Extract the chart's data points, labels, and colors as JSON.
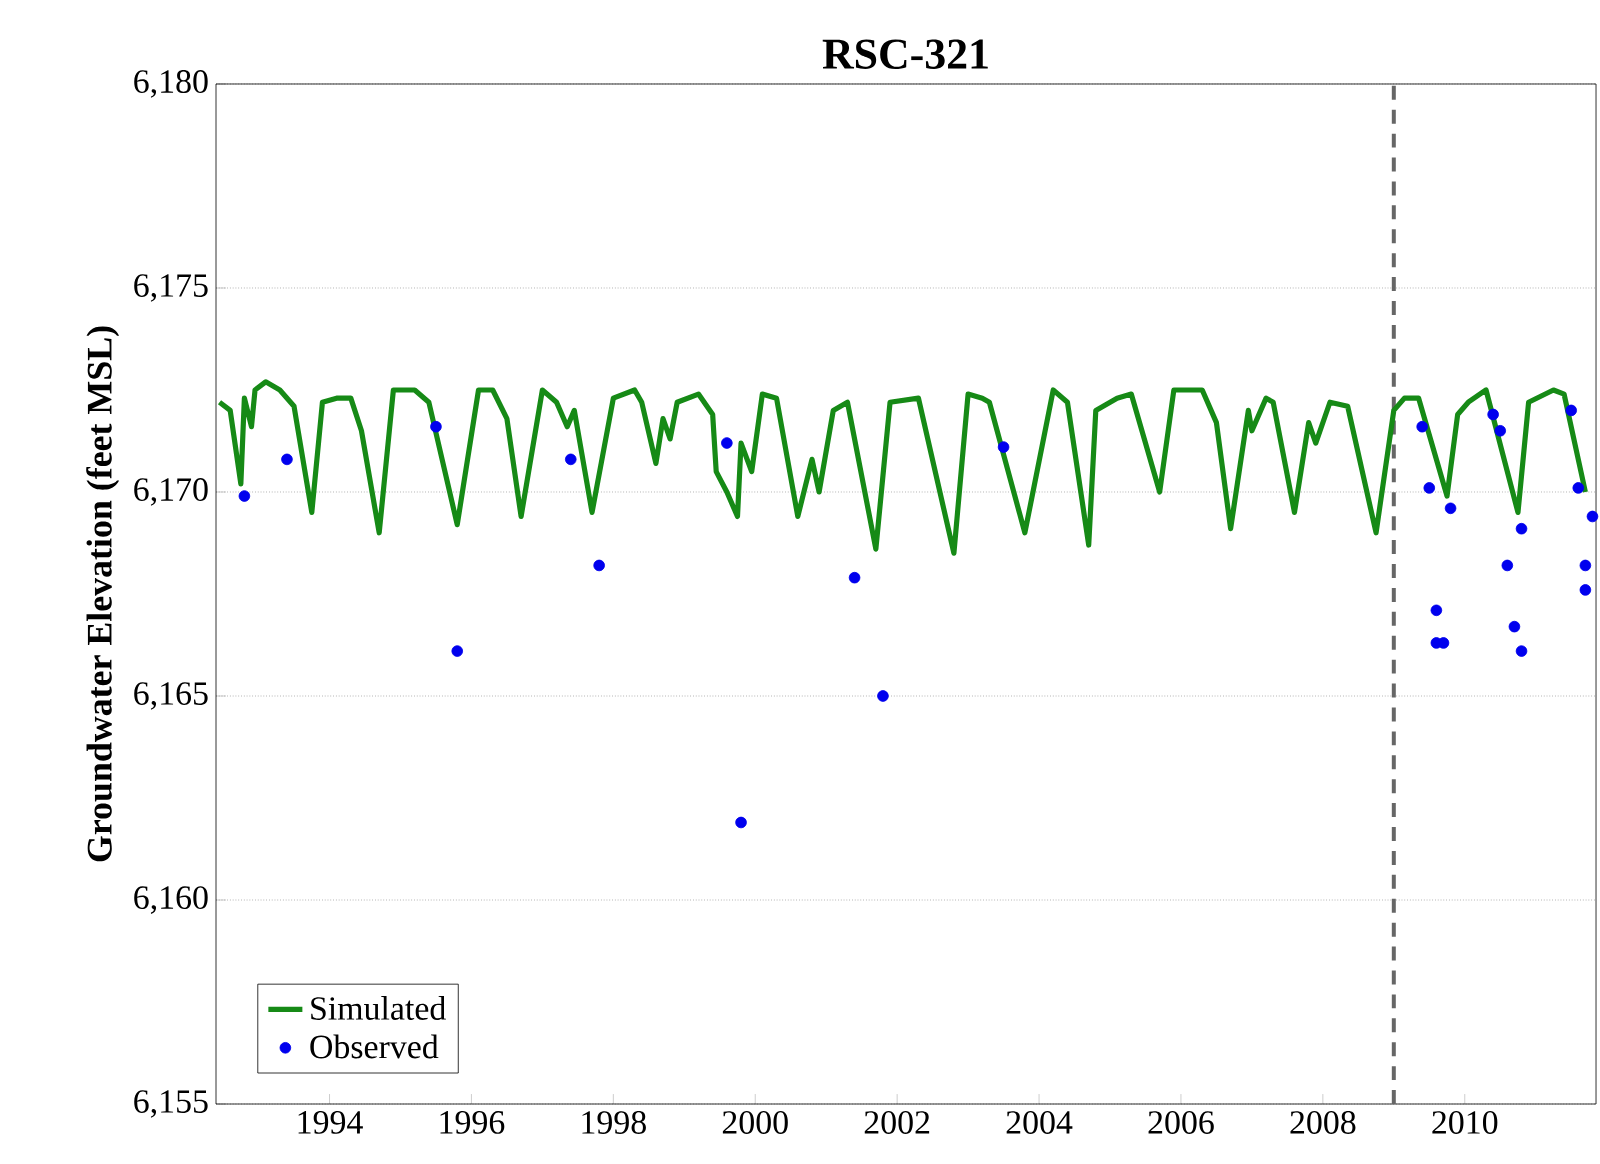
{
  "chart_data": {
    "type": "line",
    "title": "RSC-321",
    "ylabel": "Groundwater Elevation (feet MSL)",
    "xlim": [
      1992.4,
      2011.85
    ],
    "ylim": [
      6155,
      6180
    ],
    "xticks": [
      1994,
      1996,
      1998,
      2000,
      2002,
      2004,
      2006,
      2008,
      2010
    ],
    "yticks": [
      {
        "value": 6155,
        "label": "6,155"
      },
      {
        "value": 6160,
        "label": "6,160"
      },
      {
        "value": 6165,
        "label": "6,165"
      },
      {
        "value": 6170,
        "label": "6,170"
      },
      {
        "value": 6175,
        "label": "6,175"
      },
      {
        "value": 6180,
        "label": "6,180"
      }
    ],
    "grid": "y",
    "legend": "bottom left",
    "ref_lines": [
      {
        "axis": "x",
        "value": 2009,
        "color": "#666666",
        "line_style": "dashed"
      }
    ],
    "series": [
      {
        "name": "Simulated",
        "color": "#168a16",
        "marker": "none",
        "line_style": "solid",
        "x": [
          1992.45,
          1992.6,
          1992.75,
          1992.8,
          1992.9,
          1992.95,
          1993.1,
          1993.3,
          1993.5,
          1993.75,
          1993.9,
          1994.1,
          1994.3,
          1994.45,
          1994.7,
          1994.9,
          1995.2,
          1995.4,
          1995.8,
          1996.1,
          1996.3,
          1996.5,
          1996.7,
          1997.0,
          1997.2,
          1997.35,
          1997.45,
          1997.7,
          1998.0,
          1998.3,
          1998.4,
          1998.6,
          1998.7,
          1998.8,
          1998.9,
          1999.2,
          1999.4,
          1999.45,
          1999.6,
          1999.75,
          1999.8,
          1999.95,
          2000.1,
          2000.3,
          2000.6,
          2000.8,
          2000.9,
          2001.1,
          2001.3,
          2001.7,
          2001.9,
          2002.3,
          2002.8,
          2003.0,
          2003.2,
          2003.3,
          2003.8,
          2004.2,
          2004.4,
          2004.7,
          2004.8,
          2005.1,
          2005.3,
          2005.7,
          2005.9,
          2006.1,
          2006.3,
          2006.5,
          2006.7,
          2006.95,
          2007.0,
          2007.2,
          2007.3,
          2007.6,
          2007.8,
          2007.9,
          2008.1,
          2008.35,
          2008.75,
          2009.0,
          2009.15,
          2009.35,
          2009.75,
          2009.9,
          2010.05,
          2010.3,
          2010.75,
          2010.9,
          2011.25,
          2011.4,
          2011.7
        ],
        "values": [
          6172.2,
          6172.0,
          6170.2,
          6172.3,
          6171.6,
          6172.5,
          6172.7,
          6172.5,
          6172.1,
          6169.5,
          6172.2,
          6172.3,
          6172.3,
          6171.5,
          6169.0,
          6172.5,
          6172.5,
          6172.2,
          6169.2,
          6172.5,
          6172.5,
          6171.8,
          6169.4,
          6172.5,
          6172.2,
          6171.6,
          6172.0,
          6169.5,
          6172.3,
          6172.5,
          6172.2,
          6170.7,
          6171.8,
          6171.3,
          6172.2,
          6172.4,
          6171.9,
          6170.5,
          6170.0,
          6169.4,
          6171.2,
          6170.5,
          6172.4,
          6172.3,
          6169.4,
          6170.8,
          6170.0,
          6172.0,
          6172.2,
          6168.6,
          6172.2,
          6172.3,
          6168.5,
          6172.4,
          6172.3,
          6172.2,
          6169.0,
          6172.5,
          6172.2,
          6168.7,
          6172.0,
          6172.3,
          6172.4,
          6170.0,
          6172.5,
          6172.5,
          6172.5,
          6171.7,
          6169.1,
          6172.0,
          6171.5,
          6172.3,
          6172.2,
          6169.5,
          6171.7,
          6171.2,
          6172.2,
          6172.1,
          6169.0,
          6172.0,
          6172.3,
          6172.3,
          6169.9,
          6171.9,
          6172.2,
          6172.5,
          6169.5,
          6172.2,
          6172.5,
          6172.4,
          6170.0
        ]
      },
      {
        "name": "Observed",
        "type": "scatter",
        "color": "#0000ee",
        "marker": "circle",
        "x": [
          1992.8,
          1993.4,
          1995.5,
          1995.8,
          1997.4,
          1997.8,
          1999.6,
          1999.8,
          2001.4,
          2001.8,
          2003.5,
          2009.4,
          2009.5,
          2009.6,
          2009.6,
          2009.7,
          2009.8,
          2010.4,
          2010.5,
          2010.6,
          2010.7,
          2010.8,
          2010.8,
          2011.5,
          2011.6,
          2011.7,
          2011.7,
          2011.8
        ],
        "values": [
          6169.9,
          6170.8,
          6171.6,
          6166.1,
          6170.8,
          6168.2,
          6171.2,
          6161.9,
          6167.9,
          6165.0,
          6171.1,
          6171.6,
          6170.1,
          6167.1,
          6166.3,
          6166.3,
          6169.6,
          6171.9,
          6171.5,
          6168.2,
          6166.7,
          6166.1,
          6169.1,
          6172.0,
          6170.1,
          6168.2,
          6167.6,
          6169.4
        ]
      }
    ]
  }
}
